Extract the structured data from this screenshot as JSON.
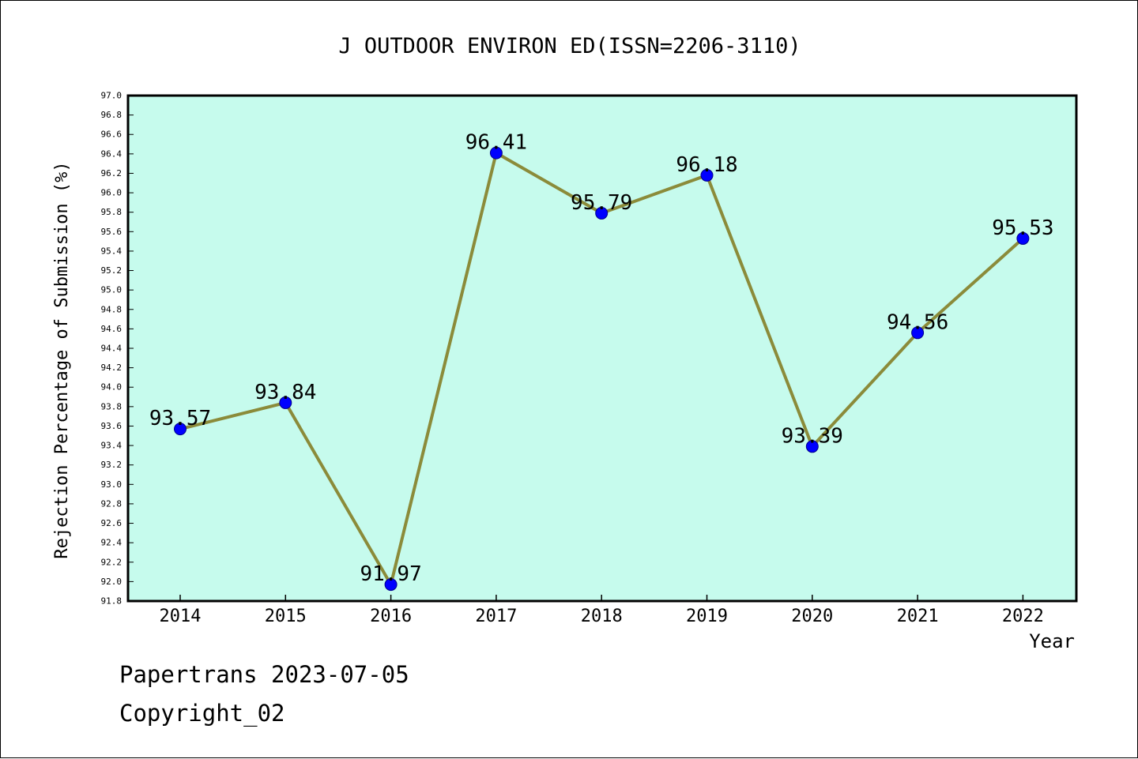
{
  "chart_data": {
    "type": "line",
    "title": "J OUTDOOR ENVIRON ED(ISSN=2206-3110)",
    "xlabel": "Year",
    "ylabel": "Rejection Percentage of Submission (%)",
    "categories": [
      "2014",
      "2015",
      "2016",
      "2017",
      "2018",
      "2019",
      "2020",
      "2021",
      "2022"
    ],
    "series": [
      {
        "values": [
          93.57,
          93.84,
          91.97,
          96.41,
          95.79,
          96.18,
          93.39,
          94.56,
          95.53
        ],
        "labels": [
          "93.57",
          "93.84",
          "91.97",
          "96.41",
          "95.79",
          "96.18",
          "93.39",
          "94.56",
          "95.53"
        ]
      }
    ],
    "ylim": [
      91.8,
      97.0
    ],
    "ytick_step": 0.2,
    "grid": false,
    "colors": {
      "plot_background": "#c6fbed",
      "line": "#8b8b3a",
      "marker": "#0000ff",
      "axis": "#000000"
    }
  },
  "footer": {
    "line1": "Papertrans 2023-07-05",
    "line2": "Copyright_02"
  }
}
